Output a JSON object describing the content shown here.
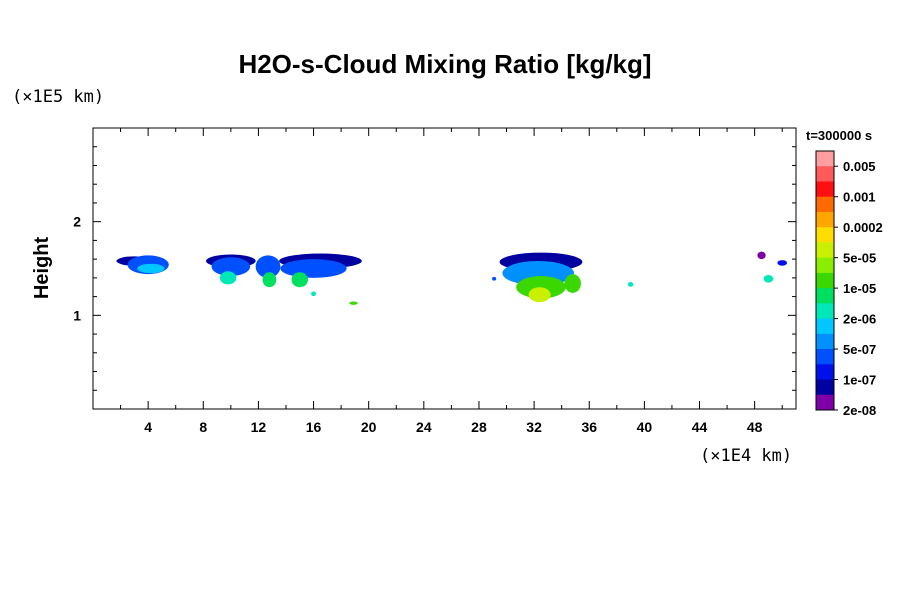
{
  "chart_data": {
    "type": "heatmap",
    "title": "H2O-s-Cloud Mixing Ratio [kg/kg]",
    "ylabel": "Height",
    "y_unit": "(×1E5 km)",
    "x_unit": "(×1E4 km)",
    "time_label": "t=300000 s",
    "xlim": [
      0,
      51
    ],
    "ylim": [
      0,
      3
    ],
    "x_ticks": [
      "4",
      "8",
      "12",
      "16",
      "20",
      "24",
      "28",
      "32",
      "36",
      "40",
      "44",
      "48"
    ],
    "y_ticks": [
      "1",
      "2"
    ],
    "colorbar": {
      "colors": [
        "#ff9ea0",
        "#ff5a5a",
        "#ff1010",
        "#ff6a00",
        "#ffa500",
        "#ffdd00",
        "#c8f000",
        "#8aee00",
        "#3ad800",
        "#00e060",
        "#00e8b8",
        "#00c8ff",
        "#0090ff",
        "#0050ff",
        "#0010e8",
        "#0000a0",
        "#8000a8"
      ],
      "labels": [
        "0.005",
        "0.001",
        "0.0002",
        "5e-05",
        "1e-05",
        "2e-06",
        "5e-07",
        "1e-07",
        "2e-08"
      ]
    },
    "clouds": [
      {
        "x": 3.0,
        "y": 1.58,
        "rx": 1.3,
        "ry": 0.05,
        "level": 15
      },
      {
        "x": 4.0,
        "y": 1.54,
        "rx": 1.5,
        "ry": 0.1,
        "level": 13
      },
      {
        "x": 4.2,
        "y": 1.5,
        "rx": 1.0,
        "ry": 0.05,
        "level": 11
      },
      {
        "x": 10.0,
        "y": 1.58,
        "rx": 1.8,
        "ry": 0.07,
        "level": 15
      },
      {
        "x": 10.0,
        "y": 1.52,
        "rx": 1.4,
        "ry": 0.1,
        "level": 13
      },
      {
        "x": 9.8,
        "y": 1.4,
        "rx": 0.6,
        "ry": 0.07,
        "level": 10
      },
      {
        "x": 12.7,
        "y": 1.52,
        "rx": 0.9,
        "ry": 0.12,
        "level": 13
      },
      {
        "x": 12.8,
        "y": 1.38,
        "rx": 0.5,
        "ry": 0.08,
        "level": 9
      },
      {
        "x": 16.5,
        "y": 1.58,
        "rx": 3.0,
        "ry": 0.08,
        "level": 15
      },
      {
        "x": 16.0,
        "y": 1.5,
        "rx": 2.4,
        "ry": 0.1,
        "level": 13
      },
      {
        "x": 15.0,
        "y": 1.38,
        "rx": 0.6,
        "ry": 0.08,
        "level": 9
      },
      {
        "x": 16.0,
        "y": 1.23,
        "rx": 0.18,
        "ry": 0.025,
        "level": 10
      },
      {
        "x": 18.9,
        "y": 1.13,
        "rx": 0.3,
        "ry": 0.018,
        "level": 8
      },
      {
        "x": 32.5,
        "y": 1.57,
        "rx": 3.0,
        "ry": 0.1,
        "level": 15
      },
      {
        "x": 32.3,
        "y": 1.45,
        "rx": 2.6,
        "ry": 0.13,
        "level": 12
      },
      {
        "x": 32.5,
        "y": 1.3,
        "rx": 1.8,
        "ry": 0.12,
        "level": 8
      },
      {
        "x": 32.4,
        "y": 1.22,
        "rx": 0.8,
        "ry": 0.08,
        "level": 6
      },
      {
        "x": 34.8,
        "y": 1.34,
        "rx": 0.6,
        "ry": 0.1,
        "level": 8
      },
      {
        "x": 29.1,
        "y": 1.39,
        "rx": 0.15,
        "ry": 0.02,
        "level": 13
      },
      {
        "x": 39.0,
        "y": 1.33,
        "rx": 0.2,
        "ry": 0.025,
        "level": 10
      },
      {
        "x": 48.5,
        "y": 1.64,
        "rx": 0.3,
        "ry": 0.04,
        "level": 16
      },
      {
        "x": 50.0,
        "y": 1.56,
        "rx": 0.35,
        "ry": 0.03,
        "level": 14
      },
      {
        "x": 49.0,
        "y": 1.39,
        "rx": 0.35,
        "ry": 0.04,
        "level": 10
      }
    ]
  }
}
